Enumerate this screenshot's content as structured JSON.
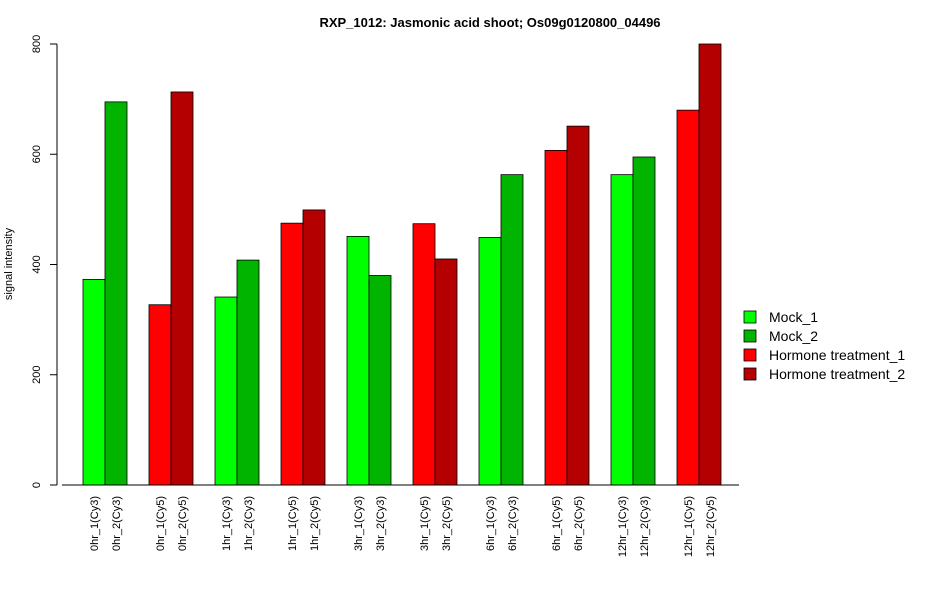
{
  "chart_data": {
    "type": "bar",
    "title": "RXP_1012: Jasmonic acid shoot; Os09g0120800_04496",
    "xlabel": "",
    "ylabel": "signal intensity",
    "ylim": [
      0,
      800
    ],
    "yticks": [
      0,
      200,
      400,
      600,
      800
    ],
    "grid": false,
    "legend_position": "right",
    "groups": [
      {
        "bars": [
          {
            "label": "0hr_1(Cy3)",
            "value": 373,
            "series": "Mock_1"
          },
          {
            "label": "0hr_2(Cy3)",
            "value": 695,
            "series": "Mock_2"
          }
        ]
      },
      {
        "bars": [
          {
            "label": "0hr_1(Cy5)",
            "value": 327,
            "series": "Hormone treatment_1"
          },
          {
            "label": "0hr_2(Cy5)",
            "value": 713,
            "series": "Hormone treatment_2"
          }
        ]
      },
      {
        "bars": [
          {
            "label": "1hr_1(Cy3)",
            "value": 341,
            "series": "Mock_1"
          },
          {
            "label": "1hr_2(Cy3)",
            "value": 408,
            "series": "Mock_2"
          }
        ]
      },
      {
        "bars": [
          {
            "label": "1hr_1(Cy5)",
            "value": 475,
            "series": "Hormone treatment_1"
          },
          {
            "label": "1hr_2(Cy5)",
            "value": 499,
            "series": "Hormone treatment_2"
          }
        ]
      },
      {
        "bars": [
          {
            "label": "3hr_1(Cy3)",
            "value": 451,
            "series": "Mock_1"
          },
          {
            "label": "3hr_2(Cy3)",
            "value": 380,
            "series": "Mock_2"
          }
        ]
      },
      {
        "bars": [
          {
            "label": "3hr_1(Cy5)",
            "value": 474,
            "series": "Hormone treatment_1"
          },
          {
            "label": "3hr_2(Cy5)",
            "value": 410,
            "series": "Hormone treatment_2"
          }
        ]
      },
      {
        "bars": [
          {
            "label": "6hr_1(Cy3)",
            "value": 449,
            "series": "Mock_1"
          },
          {
            "label": "6hr_2(Cy3)",
            "value": 563,
            "series": "Mock_2"
          }
        ]
      },
      {
        "bars": [
          {
            "label": "6hr_1(Cy5)",
            "value": 607,
            "series": "Hormone treatment_1"
          },
          {
            "label": "6hr_2(Cy5)",
            "value": 651,
            "series": "Hormone treatment_2"
          }
        ]
      },
      {
        "bars": [
          {
            "label": "12hr_1(Cy3)",
            "value": 563,
            "series": "Mock_1"
          },
          {
            "label": "12hr_2(Cy3)",
            "value": 595,
            "series": "Mock_2"
          }
        ]
      },
      {
        "bars": [
          {
            "label": "12hr_1(Cy5)",
            "value": 680,
            "series": "Hormone treatment_1"
          },
          {
            "label": "12hr_2(Cy5)",
            "value": 800,
            "series": "Hormone treatment_2"
          }
        ]
      }
    ],
    "legend": [
      {
        "name": "Mock_1",
        "color": "#00ff00"
      },
      {
        "name": "Mock_2",
        "color": "#00b400"
      },
      {
        "name": "Hormone treatment_1",
        "color": "#ff0000"
      },
      {
        "name": "Hormone treatment_2",
        "color": "#b40000"
      }
    ]
  }
}
